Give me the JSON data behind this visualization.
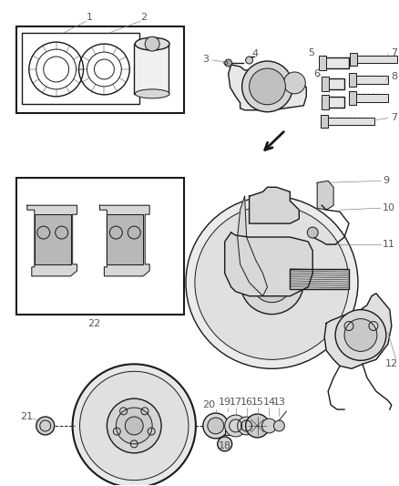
{
  "bg_color": "#ffffff",
  "line_color": "#1a1a1a",
  "label_color": "#555555",
  "fig_width": 4.39,
  "fig_height": 5.33,
  "dpi": 100
}
